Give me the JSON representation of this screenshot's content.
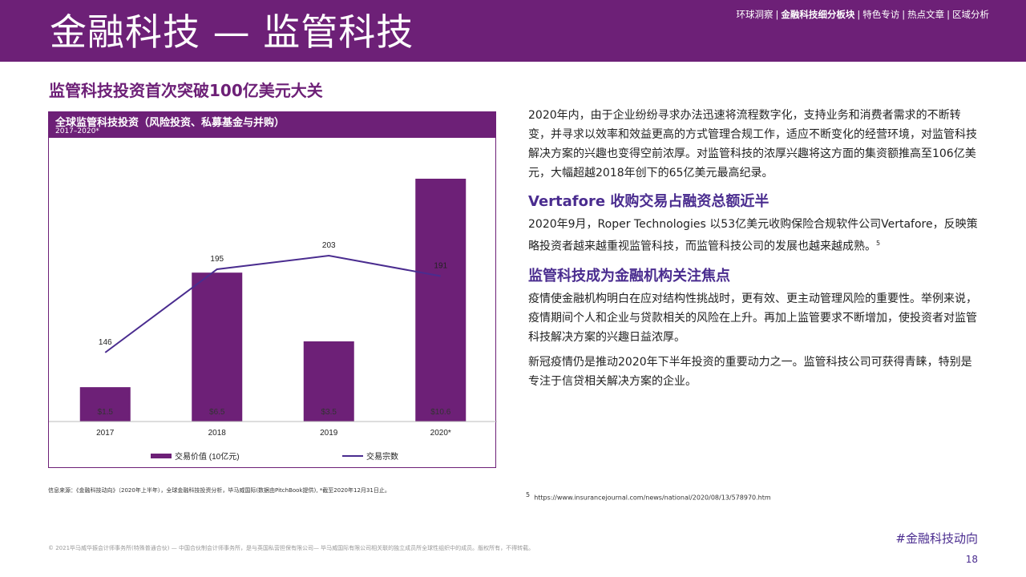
{
  "header": {
    "title": "金融科技 — 监管科技",
    "nav": [
      "环球洞察",
      "金融科技细分板块",
      "特色专访",
      "热点文章",
      "区域分析"
    ],
    "active_nav": "金融科技细分板块"
  },
  "subtitle": "监管科技投资首次突破100亿美元大关",
  "chart": {
    "title": "全球监管科技投资（风险投资、私募基金与并购）",
    "subtitle": "2017–2020*"
  },
  "chart_data": {
    "type": "bar",
    "categories": [
      "2017",
      "2018",
      "2019",
      "2020*"
    ],
    "series": [
      {
        "name": "交易价值 (10亿元)",
        "type": "bar",
        "values": [
          1.5,
          6.5,
          3.5,
          10.6
        ],
        "labels": [
          "$1.5",
          "$6.5",
          "$3.5",
          "$10.6"
        ],
        "color": "#6d2077"
      },
      {
        "name": "交易宗数",
        "type": "line",
        "values": [
          146,
          195,
          203,
          191
        ],
        "color": "#4a2c8f"
      }
    ],
    "grid": false,
    "legend_position": "bottom"
  },
  "source": "信息来源：《金融科技动向》（2020年上半年），全球金融科技投资分析，毕马威国际(数据由PitchBook提供), *截至2020年12月31日止。",
  "intro": "2020年内，由于企业纷纷寻求办法迅速将流程数字化，支持业务和消费者需求的不断转变，并寻求以效率和效益更高的方式管理合规工作，适应不断变化的经营环境，对监管科技解决方案的兴趣也变得空前浓厚。对监管科技的浓厚兴趣将这方面的集资额推高至106亿美元，大幅超越2018年创下的65亿美元最高纪录。",
  "section1": {
    "heading": "Vertafore 收购交易占融资总额近半",
    "text": "2020年9月，Roper Technologies 以53亿美元收购保险合规软件公司Vertafore，反映策略投资者越来越重视监管科技，而监管科技公司的发展也越来越成熟。",
    "sup": "5"
  },
  "section2": {
    "heading": "监管科技成为金融机构关注焦点",
    "text1": "疫情使金融机构明白在应对结构性挑战时，更有效、更主动管理风险的重要性。举例来说，疫情期间个人和企业与贷款相关的风险在上升。再加上监管要求不断增加，使投资者对监管科技解决方案的兴趣日益浓厚。",
    "text2": "新冠疫情仍是推动2020年下半年投资的重要动力之一。监管科技公司可获得青睐，特别是专注于信贷相关解决方案的企业。"
  },
  "footnote": {
    "num": "5",
    "url": "https://www.insurancejournal.com/news/national/2020/08/13/578970.htm"
  },
  "copyright": "© 2021毕马威华振会计师事务所(特殊普通合伙) — 中国合伙制会计师事务所，是与英国私营担保有限公司— 毕马威国际有限公司相关联的独立成员所全球性组织中的成员。版权所有，不得转载。",
  "hashtag": "#金融科技动向",
  "page_number": "18"
}
